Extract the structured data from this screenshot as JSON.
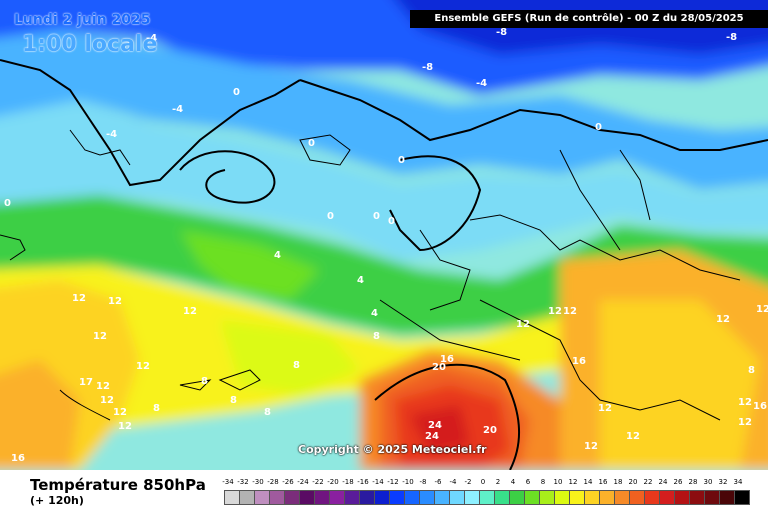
{
  "header": {
    "date": "Lundi 2 juin 2025",
    "local_time": "1:00 locale",
    "run_info": "Ensemble GEFS  (Run de contrôle)  -  00 Z du 28/05/2025"
  },
  "map": {
    "copyright": "Copyright © 2025 Meteociel.fr",
    "contour_labels": [
      "-8",
      "-8",
      "-8",
      "-4",
      "-4",
      "-4",
      "-4",
      "0",
      "0",
      "0",
      "0",
      "0",
      "0",
      "0",
      "0",
      "4",
      "4",
      "4",
      "8",
      "8",
      "8",
      "8",
      "8",
      "8",
      "8",
      "12",
      "12",
      "12",
      "12",
      "12",
      "12",
      "12",
      "12",
      "12",
      "12",
      "12",
      "12",
      "12",
      "12",
      "12",
      "12",
      "12",
      "12",
      "12",
      "16",
      "16",
      "16",
      "16",
      "17",
      "20",
      "20",
      "24",
      "24"
    ]
  },
  "footer": {
    "parameter": "Température 850hPa",
    "lead_time": "(+ 120h)"
  },
  "scale": {
    "labels": [
      "-34",
      "-32",
      "-30",
      "-28",
      "-26",
      "-24",
      "-22",
      "-20",
      "-18",
      "-16",
      "-14",
      "-12",
      "-10",
      "-8",
      "-6",
      "-4",
      "-2",
      "0",
      "2",
      "4",
      "6",
      "8",
      "10",
      "12",
      "14",
      "16",
      "18",
      "20",
      "22",
      "24",
      "26",
      "28",
      "30",
      "32",
      "34"
    ],
    "colors": [
      "#d9d9d9",
      "#b3b3b3",
      "#bf8fbf",
      "#a05a9e",
      "#7b2d7b",
      "#5a0b64",
      "#701580",
      "#8a20a0",
      "#5a1c9a",
      "#2a1aa0",
      "#0d1fd0",
      "#0a3cff",
      "#1665ff",
      "#2a8cff",
      "#49b3ff",
      "#6fd8ff",
      "#8ef0ff",
      "#5ff0c8",
      "#38e08a",
      "#3ccf45",
      "#6ce024",
      "#a8ee1a",
      "#dcfa12",
      "#f8f21a",
      "#fdd324",
      "#fbb12a",
      "#f68a28",
      "#f06120",
      "#e8381c",
      "#d41e1e",
      "#b41214",
      "#8c0d10",
      "#6e0a0e",
      "#4a0608",
      "#000000"
    ]
  }
}
